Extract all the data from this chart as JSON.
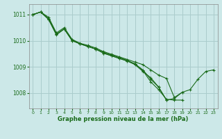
{
  "background_color": "#cce8e8",
  "grid_color": "#aacccc",
  "line_color": "#1a6b1a",
  "xlabel_bottom": "Graphe pression niveau de la mer (hPa)",
  "xlim": [
    -0.5,
    23.5
  ],
  "ylim": [
    1007.4,
    1011.4
  ],
  "yticks": [
    1008,
    1009,
    1010,
    1011
  ],
  "xticks": [
    0,
    1,
    2,
    3,
    4,
    5,
    6,
    7,
    8,
    9,
    10,
    11,
    12,
    13,
    14,
    15,
    16,
    17,
    18,
    19,
    20,
    21,
    22,
    23
  ],
  "series": [
    [
      1011.0,
      1011.1,
      1010.9,
      1010.3,
      1010.5,
      1010.05,
      1009.9,
      1009.82,
      1009.72,
      1009.58,
      1009.48,
      1009.38,
      1009.28,
      1009.18,
      1009.08,
      1008.88,
      1008.68,
      1008.55,
      1007.82,
      1008.02,
      1008.12,
      1008.52,
      1008.82,
      1008.88
    ],
    [
      1011.0,
      1011.1,
      1010.85,
      1010.25,
      1010.45,
      1010.02,
      1009.88,
      1009.78,
      1009.68,
      1009.52,
      1009.42,
      1009.32,
      1009.22,
      1009.12,
      1008.85,
      1008.42,
      1008.12,
      1007.75,
      1007.72,
      1007.72,
      null,
      null,
      null,
      null
    ],
    [
      1011.0,
      1011.1,
      1010.82,
      1010.22,
      1010.45,
      1010.0,
      1009.88,
      1009.78,
      1009.68,
      1009.55,
      1009.45,
      1009.35,
      1009.25,
      1009.1,
      1008.88,
      1008.52,
      1008.22,
      1007.72,
      1007.78,
      1008.02,
      null,
      null,
      null,
      null
    ],
    [
      1011.0,
      1011.1,
      1010.82,
      1010.25,
      1010.45,
      1010.0,
      1009.88,
      1009.78,
      1009.68,
      1009.52,
      1009.42,
      1009.32,
      1009.22,
      1009.08,
      1008.82,
      1008.58,
      1008.22,
      1007.72,
      null,
      null,
      null,
      null,
      null,
      null
    ]
  ]
}
